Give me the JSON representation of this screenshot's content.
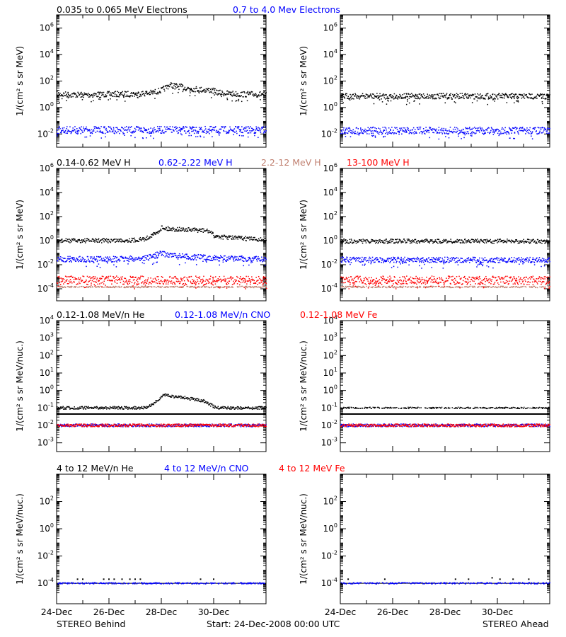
{
  "figure": {
    "footer_left": "STEREO Behind",
    "footer_center": "Start: 24-Dec-2008 00:00 UTC",
    "footer_right": "STEREO Ahead",
    "x_tick_labels": [
      "24-Dec",
      "26-Dec",
      "28-Dec",
      "30-Dec"
    ]
  },
  "chart_data": [
    {
      "type": "scatter",
      "panel": "electrons-behind",
      "ylabel": "1/(cm² s sr MeV)",
      "log_y": true,
      "ylim_exp": [
        -3,
        7
      ],
      "ytick_exps": [
        -2,
        0,
        2,
        4,
        6
      ],
      "xlim_days": [
        0,
        8
      ],
      "legend": [
        {
          "label": "0.035 to 0.065 MeV Electrons",
          "color": "#000000"
        },
        {
          "label": "0.7 to 4.0 Mev Electrons",
          "color": "#0000ff"
        }
      ],
      "series": [
        {
          "name": "0.035 to 0.065 MeV Electrons",
          "color": "#000000",
          "width": 4,
          "x": [
            0,
            1,
            2,
            3,
            3.6,
            4.0,
            4.3,
            4.6,
            5.0,
            5.5,
            5.9,
            6.2,
            6.6,
            7,
            8
          ],
          "log_y": [
            1.0,
            0.95,
            1.0,
            1.02,
            1.1,
            1.3,
            1.7,
            1.6,
            1.45,
            1.35,
            1.3,
            1.1,
            1.05,
            1.0,
            1.0
          ]
        },
        {
          "name": "0.7 to 4.0 Mev Electrons",
          "color": "#0000ff",
          "width": 5,
          "x": [
            0,
            8
          ],
          "log_y": [
            -1.7,
            -1.7
          ]
        }
      ]
    },
    {
      "type": "scatter",
      "panel": "electrons-ahead",
      "ylabel": "1/(cm² s sr MeV)",
      "log_y": true,
      "ylim_exp": [
        -3,
        7
      ],
      "ytick_exps": [
        -2,
        0,
        2,
        4,
        6
      ],
      "xlim_days": [
        0,
        8
      ],
      "series": [
        {
          "name": "0.035 to 0.065 MeV Electrons",
          "color": "#000000",
          "width": 4,
          "x": [
            0,
            8
          ],
          "log_y": [
            0.85,
            0.85
          ]
        },
        {
          "name": "0.7 to 4.0 Mev Electrons",
          "color": "#0000ff",
          "width": 5,
          "x": [
            0,
            8
          ],
          "log_y": [
            -1.75,
            -1.75
          ]
        }
      ]
    },
    {
      "type": "scatter",
      "panel": "protons-behind",
      "ylabel": "1/(cm² s sr MeV)",
      "log_y": true,
      "ylim_exp": [
        -5,
        6
      ],
      "ytick_exps": [
        -4,
        -2,
        0,
        2,
        4,
        6
      ],
      "xlim_days": [
        0,
        8
      ],
      "legend": [
        {
          "label": "0.14-0.62 MeV H",
          "color": "#000000"
        },
        {
          "label": "0.62-2.22 MeV H",
          "color": "#0000ff"
        },
        {
          "label": "2.2-12 MeV H",
          "color": "#c08070"
        },
        {
          "label": "13-100 MeV H",
          "color": "#ff0000"
        }
      ],
      "series": [
        {
          "name": "0.14-0.62 MeV H",
          "color": "#000000",
          "width": 3,
          "x": [
            0,
            1,
            2,
            3,
            3.4,
            3.6,
            3.8,
            4.0,
            4.2,
            4.5,
            5,
            5.5,
            5.8,
            6.0,
            6.3,
            7,
            8
          ],
          "log_y": [
            0,
            0,
            0,
            0.05,
            0.15,
            0.45,
            0.6,
            1.1,
            1.0,
            0.95,
            0.9,
            0.85,
            0.8,
            0.4,
            0.3,
            0.2,
            0.05
          ]
        },
        {
          "name": "0.62-2.22 MeV H",
          "color": "#0000ff",
          "width": 4,
          "x": [
            0,
            1,
            2,
            3,
            3.5,
            3.8,
            4.0,
            4.2,
            4.6,
            5,
            5.6,
            6,
            6.5,
            7,
            8
          ],
          "log_y": [
            -1.55,
            -1.55,
            -1.55,
            -1.5,
            -1.4,
            -1.2,
            -1.05,
            -1.15,
            -1.3,
            -1.35,
            -1.4,
            -1.45,
            -1.5,
            -1.5,
            -1.55
          ]
        },
        {
          "name": "2.2-12 MeV H",
          "color": "#c08070",
          "width": 1,
          "x": [
            0,
            8
          ],
          "log_y": [
            -3.85,
            -3.85
          ]
        },
        {
          "name": "13-100 MeV H",
          "color": "#ff0000",
          "width": 6,
          "x": [
            0,
            8
          ],
          "log_y": [
            -3.3,
            -3.3
          ]
        }
      ]
    },
    {
      "type": "scatter",
      "panel": "protons-ahead",
      "ylabel": "1/(cm² s sr MeV)",
      "log_y": true,
      "ylim_exp": [
        -5,
        6
      ],
      "ytick_exps": [
        -4,
        -2,
        0,
        2,
        4,
        6
      ],
      "xlim_days": [
        0,
        8
      ],
      "series": [
        {
          "name": "0.14-0.62 MeV H",
          "color": "#000000",
          "width": 3,
          "x": [
            0,
            8
          ],
          "log_y": [
            -0.05,
            -0.05
          ]
        },
        {
          "name": "0.62-2.22 MeV H",
          "color": "#0000ff",
          "width": 4,
          "x": [
            0,
            8
          ],
          "log_y": [
            -1.6,
            -1.6
          ]
        },
        {
          "name": "2.2-12 MeV H",
          "color": "#c08070",
          "width": 1,
          "x": [
            0,
            8
          ],
          "log_y": [
            -3.85,
            -3.85
          ]
        },
        {
          "name": "13-100 MeV H",
          "color": "#ff0000",
          "width": 6,
          "x": [
            0,
            8
          ],
          "log_y": [
            -3.3,
            -3.3
          ]
        }
      ]
    },
    {
      "type": "scatter",
      "panel": "heavy-low-behind",
      "ylabel": "1/(cm² s sr MeV/nuc.)",
      "log_y": true,
      "ylim_exp": [
        -3.5,
        4
      ],
      "ytick_exps": [
        -3,
        -2,
        -1,
        0,
        1,
        2,
        3,
        4
      ],
      "xlim_days": [
        0,
        8
      ],
      "legend": [
        {
          "label": "0.12-1.08 MeV/n He",
          "color": "#000000"
        },
        {
          "label": "0.12-1.08 MeV/n CNO",
          "color": "#0000ff"
        },
        {
          "label": "0.12-1.08 MeV Fe",
          "color": "#ff0000"
        }
      ],
      "series": [
        {
          "name": "0.12-1.08 MeV/n He",
          "color": "#000000",
          "width": 2,
          "x": [
            0,
            3.4,
            3.6,
            3.9,
            4.1,
            4.4,
            4.8,
            5.2,
            5.6,
            5.9,
            6.1,
            8
          ],
          "log_y": [
            -1,
            -1,
            -0.85,
            -0.5,
            -0.25,
            -0.35,
            -0.4,
            -0.5,
            -0.6,
            -0.85,
            -1,
            -1
          ]
        },
        {
          "name": "0.12-1.08 MeV/n CNO",
          "color": "#0000ff",
          "width": 2,
          "x": [
            0,
            8
          ],
          "log_y": [
            -2,
            -2
          ]
        },
        {
          "name": "0.12-1.08 MeV Fe",
          "color": "#ff0000",
          "width": 2,
          "x": [
            0,
            8
          ],
          "log_y": [
            -2,
            -2
          ]
        }
      ],
      "reference_line_log_y": -1.35
    },
    {
      "type": "scatter",
      "panel": "heavy-low-ahead",
      "ylabel": "1/(cm² s sr MeV/nuc.)",
      "log_y": true,
      "ylim_exp": [
        -3.5,
        4
      ],
      "ytick_exps": [
        -3,
        -2,
        -1,
        0,
        1,
        2,
        3,
        4
      ],
      "xlim_days": [
        0,
        8
      ],
      "series": [
        {
          "name": "0.12-1.08 MeV/n He",
          "color": "#000000",
          "width": 1,
          "x": [
            0,
            8
          ],
          "log_y": [
            -1,
            -1
          ]
        },
        {
          "name": "0.12-1.08 MeV/n CNO",
          "color": "#0000ff",
          "width": 2,
          "x": [
            0,
            8
          ],
          "log_y": [
            -2,
            -2
          ]
        },
        {
          "name": "0.12-1.08 MeV Fe",
          "color": "#ff0000",
          "width": 2,
          "x": [
            0,
            8
          ],
          "log_y": [
            -2,
            -2
          ]
        }
      ],
      "reference_line_log_y": -1.35
    },
    {
      "type": "scatter",
      "panel": "heavy-high-behind",
      "ylabel": "1/(cm² s sr MeV/nuc.)",
      "log_y": true,
      "ylim_exp": [
        -5.5,
        4
      ],
      "ytick_exps": [
        -4,
        -2,
        0,
        2
      ],
      "xlim_days": [
        0,
        8
      ],
      "legend": [
        {
          "label": "4 to 12 MeV/n He",
          "color": "#000000"
        },
        {
          "label": "4 to 12 MeV/n CNO",
          "color": "#0000ff"
        },
        {
          "label": "4 to 12 MeV Fe",
          "color": "#ff0000"
        }
      ],
      "series": [
        {
          "name": "4 to 12 MeV/n He",
          "color": "#000000",
          "width": 2,
          "x": [
            0.8,
            1.0,
            1.8,
            2.0,
            2.2,
            2.5,
            2.8,
            3.0,
            3.2,
            5.5,
            6.0
          ],
          "log_y": [
            -3.7,
            -3.7,
            -3.7,
            -3.7,
            -3.7,
            -3.7,
            -3.7,
            -3.7,
            -3.7,
            -3.7,
            -3.7
          ]
        },
        {
          "name": "4 to 12 MeV/n CNO",
          "color": "#0000ff",
          "width": 1,
          "x": [
            0,
            8
          ],
          "log_y": [
            -4,
            -4
          ]
        }
      ],
      "reference_line_log_y": -4.0
    },
    {
      "type": "scatter",
      "panel": "heavy-high-ahead",
      "ylabel": "1/(cm² s sr MeV/nuc.)",
      "log_y": true,
      "ylim_exp": [
        -5.5,
        4
      ],
      "ytick_exps": [
        -4,
        -2,
        0,
        2
      ],
      "xlim_days": [
        0,
        8
      ],
      "series": [
        {
          "name": "4 to 12 MeV/n He",
          "color": "#000000",
          "width": 2,
          "x": [
            0.3,
            1.7,
            4.4,
            4.9,
            5.8,
            6.1,
            6.6,
            7.2
          ],
          "log_y": [
            -3.7,
            -3.7,
            -3.7,
            -3.7,
            -3.6,
            -3.7,
            -3.7,
            -3.7
          ]
        },
        {
          "name": "4 to 12 MeV/n CNO",
          "color": "#0000ff",
          "width": 1,
          "x": [
            0,
            8
          ],
          "log_y": [
            -4,
            -4
          ]
        }
      ],
      "reference_line_log_y": -4.0
    }
  ]
}
